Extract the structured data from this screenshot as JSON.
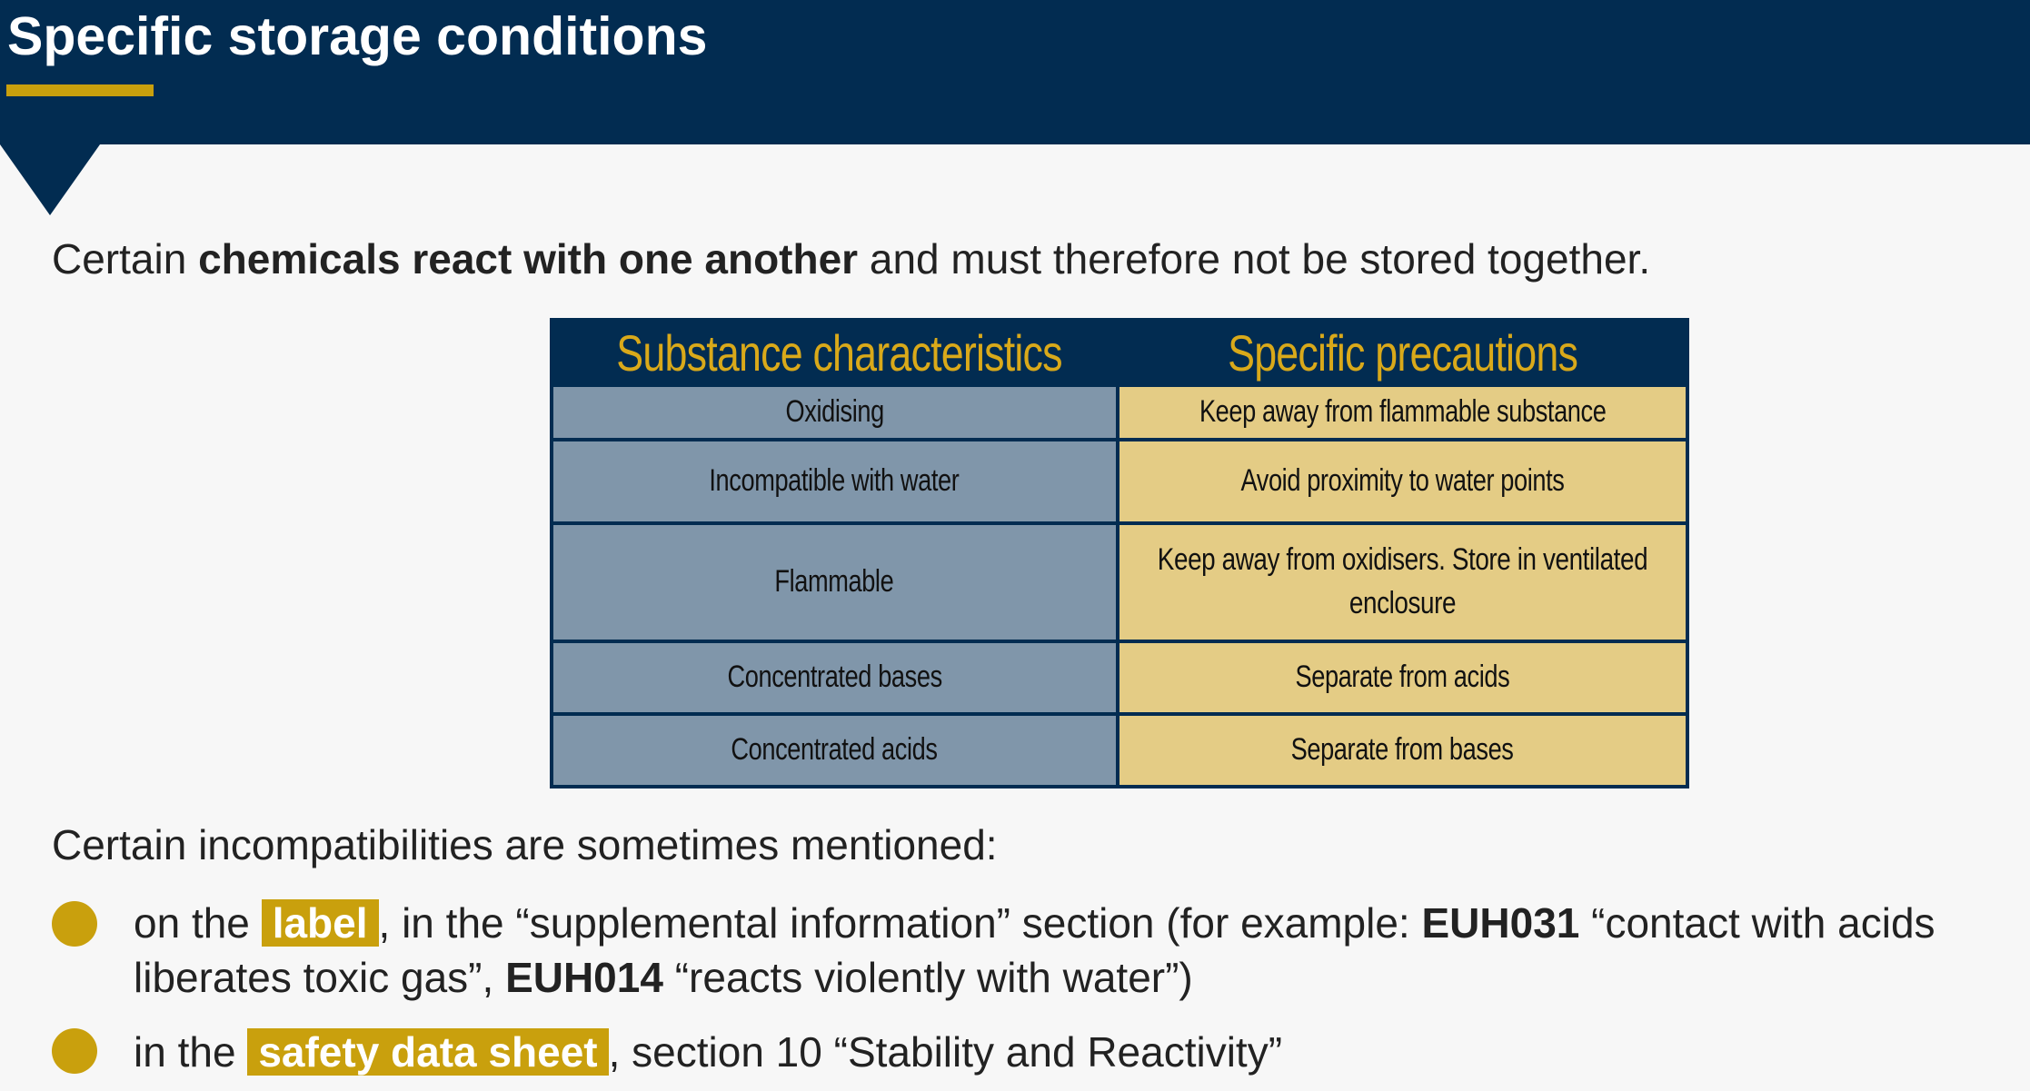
{
  "header": {
    "title": "Specific storage conditions"
  },
  "intro": {
    "prefix": "Certain ",
    "emphasis": "chemicals react with one another",
    "suffix": " and must therefore not be stored together."
  },
  "table": {
    "headers": [
      "Substance characteristics",
      "Specific precautions"
    ],
    "rows": [
      {
        "characteristic": "Oxidising",
        "precaution": "Keep away from flammable substance"
      },
      {
        "characteristic": "Incompatible with water",
        "precaution": "Avoid proximity to water points"
      },
      {
        "characteristic": "Flammable",
        "precaution": "Keep away from oxidisers. Store in ventilated enclosure"
      },
      {
        "characteristic": "Concentrated bases",
        "precaution": "Separate from acids"
      },
      {
        "characteristic": "Concentrated acids",
        "precaution": "Separate from bases"
      }
    ]
  },
  "incompatibilities": {
    "lead": "Certain incompatibilities are sometimes mentioned:",
    "bullets": [
      {
        "t1": "on the ",
        "highlight": "label",
        "t2": ", in the “supplemental information” section (for example: ",
        "code1": "EUH031",
        "t3": " “contact with acids liberates toxic gas”, ",
        "code2": "EUH014",
        "t4": " “reacts violently with water”)"
      },
      {
        "t1": "in the ",
        "highlight": "safety data sheet",
        "t2": ", section 10 “Stability and Reactivity”"
      }
    ]
  },
  "colors": {
    "navy": "#022c51",
    "gold": "#c9a00d",
    "slate_cell": "#8096aa",
    "sand_cell": "#e4cc85"
  }
}
